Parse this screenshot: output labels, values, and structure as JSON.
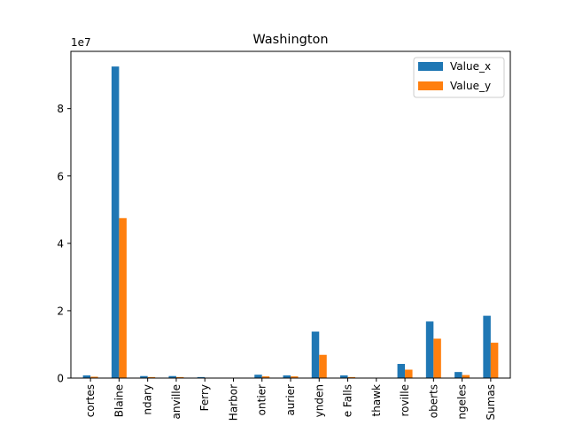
{
  "chart_data": {
    "type": "bar",
    "title": "Washington",
    "xlabel": "",
    "ylabel": "",
    "offset_text": "1e7",
    "scale": 10000000,
    "ylim": [
      0,
      9.7
    ],
    "yticks": [
      0,
      2,
      4,
      6,
      8
    ],
    "ytick_labels": [
      "0",
      "2",
      "4",
      "6",
      "8"
    ],
    "categories": [
      "Anacortes",
      "Blaine",
      "Boundary",
      "Danville",
      "Ferry",
      "Friday Harbor",
      "Frontier",
      "Laurier",
      "Lynden",
      "Metaline Falls",
      "Nighthawk",
      "Oroville",
      "Point Roberts",
      "Port Angeles",
      "Sumas"
    ],
    "category_labels_visible": [
      "cortes",
      "Blaine",
      "ndary",
      "anville",
      "Ferry",
      "Harbor",
      "ontier",
      "aurier",
      "ynden",
      "e Falls",
      "thawk",
      "roville",
      "oberts",
      "ngeles",
      "Sumas"
    ],
    "series": [
      {
        "name": "Value_x",
        "color": "#1f77b4",
        "values": [
          0.08,
          9.25,
          0.06,
          0.06,
          0.03,
          0.0,
          0.1,
          0.08,
          1.38,
          0.08,
          0.01,
          0.42,
          1.68,
          0.18,
          1.85
        ]
      },
      {
        "name": "Value_y",
        "color": "#ff7f0e",
        "values": [
          0.04,
          4.75,
          0.03,
          0.03,
          0.01,
          0.0,
          0.05,
          0.05,
          0.69,
          0.03,
          0.005,
          0.25,
          1.17,
          0.09,
          1.05
        ]
      }
    ],
    "legend_position": "top-right",
    "grid": false
  }
}
